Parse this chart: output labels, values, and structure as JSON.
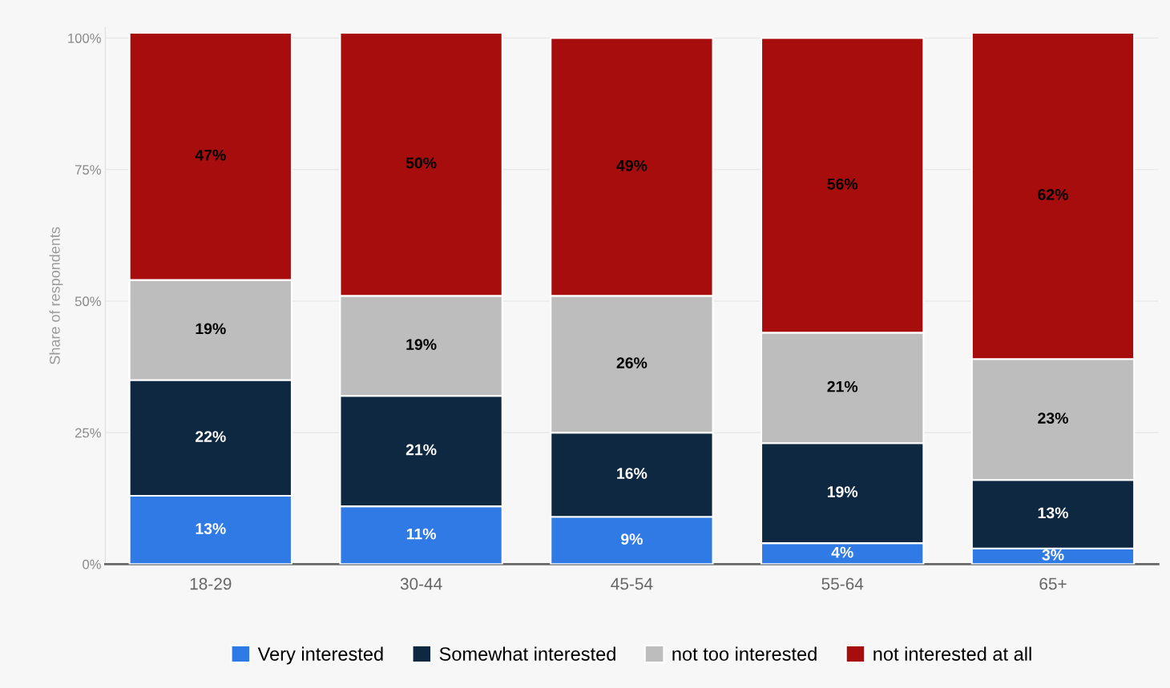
{
  "chart_data": {
    "type": "bar",
    "stacked": true,
    "ylabel": "Share of respondents",
    "categories": [
      "18-29",
      "30-44",
      "45-54",
      "55-64",
      "65+"
    ],
    "series": [
      {
        "name": "Very interested",
        "color": "#2f7ae5",
        "values": [
          13,
          11,
          9,
          4,
          3
        ],
        "value_labels": [
          "13%",
          "11%",
          "9%",
          "4%",
          "3%"
        ]
      },
      {
        "name": "Somewhat interested",
        "color": "#0e2841",
        "values": [
          22,
          21,
          16,
          19,
          13
        ],
        "value_labels": [
          "22%",
          "21%",
          "16%",
          "19%",
          "13%"
        ]
      },
      {
        "name": "not too interested",
        "color": "#bdbdbd",
        "values": [
          19,
          19,
          26,
          21,
          23
        ],
        "value_labels": [
          "19%",
          "19%",
          "26%",
          "21%",
          "23%"
        ]
      },
      {
        "name": "not interested at all",
        "color": "#a80d0d",
        "values": [
          47,
          50,
          49,
          56,
          62
        ],
        "value_labels": [
          "47%",
          "50%",
          "49%",
          "56%",
          "62%"
        ]
      }
    ],
    "ylim": [
      0,
      102
    ],
    "yticks": [
      {
        "value": 0,
        "label": "0%"
      },
      {
        "value": 25,
        "label": "25%"
      },
      {
        "value": 50,
        "label": "50%"
      },
      {
        "value": 75,
        "label": "75%"
      },
      {
        "value": 100,
        "label": "100%"
      }
    ],
    "grid": "y",
    "legend": "bottom"
  }
}
